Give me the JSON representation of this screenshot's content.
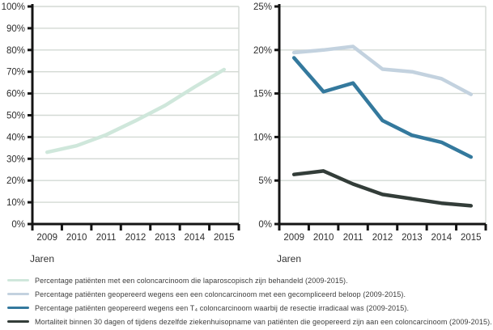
{
  "colors": {
    "axis": "#141414",
    "grid": "#d3d9d4",
    "tick_text": "#2e2e2e",
    "series_laparoscopisch": "#cfe7db",
    "series_gecompliceerd": "#c3d2df",
    "series_t4_irradicaal": "#34799d",
    "series_mortaliteit": "#333d39"
  },
  "chart_data": [
    {
      "type": "line",
      "title": "",
      "xlabel": "Jaren",
      "ylabel": "",
      "categories": [
        "2009",
        "2010",
        "2011",
        "2012",
        "2013",
        "2014",
        "2015"
      ],
      "ylim": [
        0,
        100
      ],
      "grid": true,
      "yticks": [
        {
          "value": 0,
          "label": "0%"
        },
        {
          "value": 10,
          "label": "10%"
        },
        {
          "value": 20,
          "label": "20%"
        },
        {
          "value": 30,
          "label": "30%"
        },
        {
          "value": 40,
          "label": "40%"
        },
        {
          "value": 50,
          "label": "50%"
        },
        {
          "value": 60,
          "label": "60%"
        },
        {
          "value": 70,
          "label": "70%"
        },
        {
          "value": 80,
          "label": "80%"
        },
        {
          "value": 90,
          "label": "90%"
        },
        {
          "value": 100,
          "label": "100%"
        }
      ],
      "series": [
        {
          "name": "laparoscopisch-behandeld",
          "color": "#cfe7db",
          "values": [
            33,
            36,
            41,
            47.5,
            54.5,
            63,
            71
          ]
        }
      ]
    },
    {
      "type": "line",
      "title": "",
      "xlabel": "Jaren",
      "ylabel": "",
      "categories": [
        "2009",
        "2010",
        "2011",
        "2012",
        "2013",
        "2014",
        "2015"
      ],
      "ylim": [
        0,
        25
      ],
      "grid": true,
      "yticks": [
        {
          "value": 0,
          "label": "0%"
        },
        {
          "value": 5,
          "label": "5%"
        },
        {
          "value": 10,
          "label": "10%"
        },
        {
          "value": 15,
          "label": "15%"
        },
        {
          "value": 20,
          "label": "20%"
        },
        {
          "value": 25,
          "label": "25%"
        }
      ],
      "series": [
        {
          "name": "gecompliceerd-beloop",
          "color": "#c3d2df",
          "values": [
            19.7,
            20.0,
            20.4,
            17.8,
            17.5,
            16.7,
            14.9
          ]
        },
        {
          "name": "t4-resectie-irradicaal",
          "color": "#34799d",
          "values": [
            19.1,
            15.2,
            16.2,
            11.9,
            10.2,
            9.4,
            7.7
          ]
        },
        {
          "name": "mortaliteit-30-dagen",
          "color": "#333d39",
          "values": [
            5.7,
            6.1,
            4.6,
            3.4,
            2.9,
            2.4,
            2.1
          ]
        }
      ]
    }
  ],
  "legend": {
    "items": [
      {
        "label": "Percentage patiënten met een coloncarcinoom die laparoscopisch zijn behandeld (2009-2015).",
        "color": "#cfe7db"
      },
      {
        "label": "Percentage patiënten geopereerd wegens een een coloncarcinoom met een gecompliceerd beloop (2009-2015).",
        "color": "#c3d2df"
      },
      {
        "label": "Percentage patiënten geopereerd wegens een T₄ coloncarcinoom waarbij de resectie irradicaal was (2009-2015).",
        "color": "#34799d"
      },
      {
        "label": "Mortaliteit binnen 30 dagen of tijdens dezelfde ziekenhuisopname van patiënten die geopereerd zijn aan een coloncarcinoom (2009-2015).",
        "color": "#333d39"
      }
    ]
  }
}
